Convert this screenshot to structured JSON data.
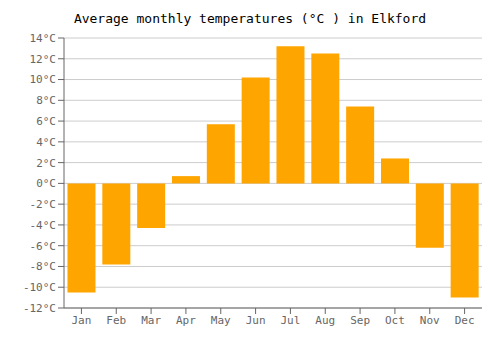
{
  "chart_data": {
    "type": "bar",
    "title": "Average monthly temperatures (°C ) in Elkford",
    "categories": [
      "Jan",
      "Feb",
      "Mar",
      "Apr",
      "May",
      "Jun",
      "Jul",
      "Aug",
      "Sep",
      "Oct",
      "Nov",
      "Dec"
    ],
    "values": [
      -10.5,
      -7.8,
      -4.3,
      0.7,
      5.7,
      10.2,
      13.2,
      12.5,
      7.4,
      2.4,
      -6.2,
      -11.0
    ],
    "color": "#FFA500",
    "ylim": [
      -12,
      14
    ],
    "yticks": [
      {
        "value": -12,
        "label": "-12°C"
      },
      {
        "value": -10,
        "label": "-10°C"
      },
      {
        "value": -8,
        "label": "-8°C"
      },
      {
        "value": -6,
        "label": "-6°C"
      },
      {
        "value": -4,
        "label": "-4°C"
      },
      {
        "value": -2,
        "label": "-2°C"
      },
      {
        "value": 0,
        "label": "0°C"
      },
      {
        "value": 2,
        "label": "2°C"
      },
      {
        "value": 4,
        "label": "4°C"
      },
      {
        "value": 6,
        "label": "6°C"
      },
      {
        "value": 8,
        "label": "8°C"
      },
      {
        "value": 10,
        "label": "10°C"
      },
      {
        "value": 12,
        "label": "12°C"
      },
      {
        "value": 14,
        "label": "14°C"
      }
    ],
    "grid": true
  }
}
